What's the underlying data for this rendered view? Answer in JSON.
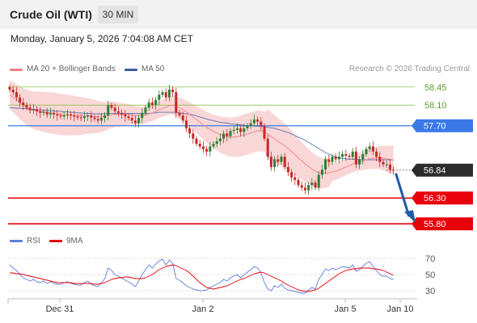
{
  "header": {
    "title": "Crude Oil (WTI)",
    "timeframe": "30 MIN",
    "datetime": "Monday, January 5, 2026 7:04:08 AM CET"
  },
  "legend": {
    "ma20": "MA 20 + Bollinger Bands",
    "ma50": "MA 50",
    "credit": "Research © 2026 Trading Central",
    "rsi": "RSI",
    "rsi_ma": "9MA"
  },
  "colors": {
    "candle_up": "#2e7d32",
    "candle_down": "#c62828",
    "bollinger_fill": "#f8d0d0",
    "ma20": "#f08080",
    "ma50": "#3a5ea8",
    "resistance": "#3b78e7",
    "support": "#e8000b",
    "target_green": "#8bc34a",
    "arrow": "#1f5aa6",
    "rsi": "#5b7fd6",
    "rsi_ma": "#e8000b"
  },
  "chart_data": [
    {
      "type": "candlestick",
      "title": "Crude Oil (WTI)",
      "timeframe": "30 MIN",
      "x_labels": [
        "Dec 31",
        "Jan 2",
        "Jan 5",
        "Jan 10"
      ],
      "ylim": [
        55.6,
        58.65
      ],
      "levels": [
        {
          "value": 58.45,
          "label": "58.45",
          "kind": "target"
        },
        {
          "value": 58.1,
          "label": "58.10",
          "kind": "target"
        },
        {
          "value": 57.7,
          "label": "57.70",
          "kind": "resistance"
        },
        {
          "value": 56.84,
          "label": "56.84",
          "kind": "last"
        },
        {
          "value": 56.3,
          "label": "56.30",
          "kind": "support"
        },
        {
          "value": 55.8,
          "label": "55.80",
          "kind": "support"
        }
      ],
      "close": [
        58.4,
        58.35,
        58.25,
        58.15,
        58.1,
        58.05,
        58.0,
        58.02,
        57.98,
        57.95,
        57.97,
        57.92,
        57.95,
        57.92,
        57.9,
        57.88,
        57.9,
        57.92,
        57.9,
        57.88,
        57.86,
        57.85,
        57.88,
        57.9,
        57.86,
        57.83,
        57.8,
        57.85,
        57.9,
        58.1,
        58.05,
        57.98,
        57.95,
        57.92,
        57.88,
        57.85,
        57.8,
        57.75,
        57.85,
        57.95,
        58.05,
        58.15,
        58.1,
        58.2,
        58.3,
        58.35,
        58.25,
        58.4,
        58.35,
        57.95,
        57.9,
        57.8,
        57.65,
        57.55,
        57.45,
        57.35,
        57.3,
        57.25,
        57.2,
        57.3,
        57.35,
        57.4,
        57.45,
        57.55,
        57.5,
        57.6,
        57.62,
        57.65,
        57.58,
        57.65,
        57.7,
        57.75,
        57.82,
        57.78,
        57.7,
        57.45,
        57.1,
        56.9,
        57.05,
        57.0,
        57.1,
        56.9,
        56.8,
        56.7,
        56.65,
        56.55,
        56.5,
        56.45,
        56.55,
        56.6,
        56.5,
        56.75,
        56.85,
        57.05,
        57.0,
        57.1,
        57.05,
        57.1,
        57.15,
        57.12,
        57.1,
        57.2,
        56.95,
        57.05,
        57.15,
        57.25,
        57.3,
        57.2,
        57.1,
        57.0,
        56.95,
        56.95,
        56.85,
        56.84
      ],
      "ma20": [
        58.3,
        58.25,
        58.2,
        58.15,
        58.1,
        58.06,
        58.02,
        58.0,
        57.99,
        57.98,
        57.97,
        57.96,
        57.95,
        57.94,
        57.93,
        57.92,
        57.91,
        57.91,
        57.9,
        57.9,
        57.89,
        57.89,
        57.89,
        57.89,
        57.88,
        57.88,
        57.87,
        57.87,
        57.88,
        57.9,
        57.91,
        57.92,
        57.92,
        57.92,
        57.92,
        57.92,
        57.91,
        57.9,
        57.9,
        57.9,
        57.91,
        57.93,
        57.95,
        57.98,
        58.01,
        58.04,
        58.06,
        58.09,
        58.1,
        58.08,
        58.05,
        58.01,
        57.97,
        57.92,
        57.87,
        57.82,
        57.77,
        57.72,
        57.67,
        57.63,
        57.59,
        57.56,
        57.53,
        57.51,
        57.49,
        57.48,
        57.48,
        57.49,
        57.5,
        57.52,
        57.54,
        57.56,
        57.58,
        57.6,
        57.6,
        57.58,
        57.54,
        57.49,
        57.45,
        57.4,
        57.36,
        57.31,
        57.26,
        57.2,
        57.14,
        57.08,
        57.02,
        56.96,
        56.91,
        56.86,
        56.82,
        56.79,
        56.78,
        56.78,
        56.79,
        56.8,
        56.82,
        56.84,
        56.87,
        56.9,
        56.93,
        56.96,
        56.98,
        57.0,
        57.02,
        57.04,
        57.06,
        57.07,
        57.08,
        57.08,
        57.07,
        57.06,
        57.05,
        57.04
      ],
      "ma50": [
        58.05,
        58.05,
        58.04,
        58.04,
        58.03,
        58.03,
        58.02,
        58.02,
        58.01,
        58.01,
        58.0,
        58.0,
        57.99,
        57.99,
        57.98,
        57.98,
        57.97,
        57.97,
        57.96,
        57.96,
        57.95,
        57.95,
        57.94,
        57.94,
        57.93,
        57.93,
        57.93,
        57.93,
        57.93,
        57.94,
        57.94,
        57.94,
        57.94,
        57.94,
        57.94,
        57.94,
        57.94,
        57.94,
        57.94,
        57.94,
        57.94,
        57.94,
        57.95,
        57.95,
        57.96,
        57.96,
        57.96,
        57.96,
        57.96,
        57.96,
        57.95,
        57.94,
        57.93,
        57.92,
        57.91,
        57.89,
        57.87,
        57.85,
        57.83,
        57.81,
        57.8,
        57.78,
        57.77,
        57.76,
        57.75,
        57.74,
        57.73,
        57.72,
        57.72,
        57.71,
        57.7,
        57.7,
        57.7,
        57.69,
        57.69,
        57.68,
        57.67,
        57.66,
        57.65,
        57.63,
        57.61,
        57.59,
        57.57,
        57.54,
        57.51,
        57.48,
        57.45,
        57.42,
        57.38,
        57.34,
        57.3,
        57.26,
        57.22,
        57.18,
        57.15,
        57.12,
        57.1,
        57.08,
        57.07,
        57.06,
        57.05,
        57.05,
        57.05,
        57.04,
        57.04,
        57.04,
        57.04,
        57.04,
        57.04,
        57.04,
        57.04,
        57.04,
        57.04,
        57.04
      ]
    },
    {
      "type": "line",
      "title": "RSI",
      "series_names": [
        "RSI",
        "9MA"
      ],
      "yticks": [
        70,
        50,
        30
      ],
      "ylim": [
        20,
        80
      ],
      "rsi": [
        62,
        58,
        55,
        50,
        46,
        44,
        42,
        44,
        41,
        40,
        42,
        39,
        41,
        39,
        38,
        38,
        40,
        41,
        39,
        38,
        37,
        37,
        40,
        42,
        38,
        36,
        35,
        40,
        45,
        58,
        55,
        50,
        48,
        46,
        43,
        41,
        38,
        35,
        42,
        50,
        56,
        62,
        58,
        63,
        67,
        69,
        62,
        68,
        64,
        45,
        43,
        40,
        36,
        34,
        32,
        31,
        30,
        30,
        31,
        34,
        36,
        38,
        40,
        44,
        42,
        46,
        48,
        50,
        46,
        50,
        53,
        56,
        60,
        58,
        52,
        40,
        32,
        30,
        36,
        34,
        38,
        33,
        31,
        30,
        29,
        28,
        27,
        27,
        31,
        34,
        32,
        44,
        50,
        57,
        55,
        58,
        56,
        58,
        60,
        59,
        58,
        62,
        54,
        56,
        60,
        64,
        66,
        60,
        55,
        50,
        48,
        48,
        45,
        44
      ],
      "ma9": [
        52,
        52,
        51,
        51,
        50,
        49,
        48,
        47,
        46,
        45,
        44,
        43,
        42,
        41,
        40,
        40,
        40,
        40,
        40,
        39,
        39,
        39,
        39,
        39,
        39,
        38,
        38,
        39,
        40,
        42,
        44,
        45,
        46,
        46,
        47,
        47,
        46,
        45,
        45,
        45,
        46,
        48,
        50,
        53,
        56,
        58,
        60,
        61,
        62,
        61,
        59,
        57,
        55,
        52,
        48,
        44,
        40,
        37,
        34,
        33,
        32,
        33,
        34,
        35,
        36,
        38,
        40,
        42,
        44,
        45,
        47,
        49,
        51,
        52,
        53,
        52,
        50,
        48,
        46,
        44,
        42,
        39,
        37,
        35,
        33,
        31,
        30,
        29,
        29,
        30,
        31,
        33,
        36,
        39,
        42,
        45,
        48,
        51,
        53,
        55,
        56,
        57,
        57,
        58,
        58,
        58,
        58,
        57,
        57,
        56,
        55,
        53,
        51,
        49
      ]
    }
  ]
}
